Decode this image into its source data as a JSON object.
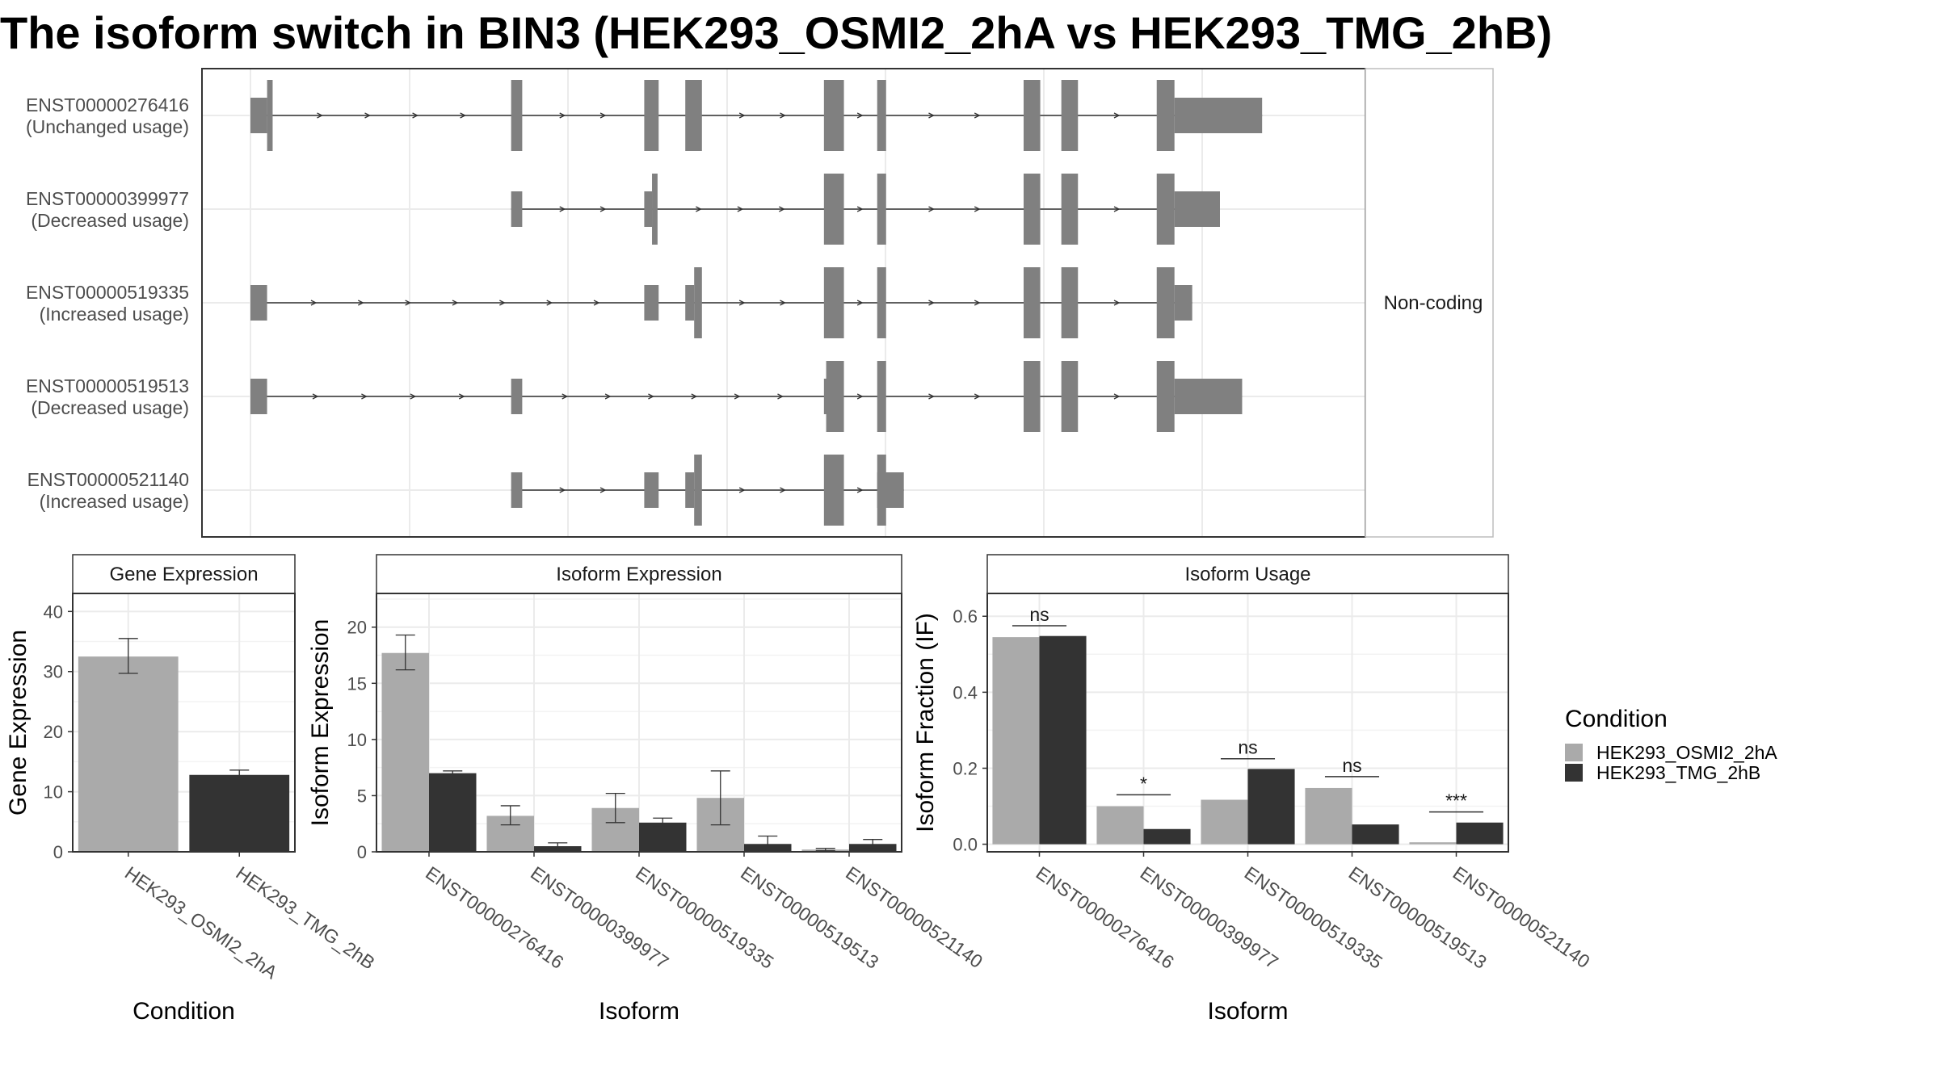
{
  "title": "The isoform switch in BIN3 (HEK293_OSMI2_2hA vs HEK293_TMG_2hB)",
  "colors": {
    "condition_a": "#aaaaaa",
    "condition_b": "#333333",
    "exon": "#808080",
    "panel_border": "#333333",
    "grid": "#ebebeb"
  },
  "structure": {
    "strip_label": "Non-coding",
    "isoforms": [
      {
        "id": "ENST00000276416",
        "usage": "(Unchanged usage)",
        "exons": [
          [
            0.0,
            0.015,
            "t"
          ],
          [
            0.015,
            0.02,
            "c"
          ],
          [
            0.235,
            0.245,
            "c"
          ],
          [
            0.355,
            0.368,
            "c"
          ],
          [
            0.392,
            0.407,
            "c"
          ],
          [
            0.517,
            0.535,
            "c"
          ],
          [
            0.565,
            0.573,
            "c"
          ],
          [
            0.697,
            0.712,
            "c"
          ],
          [
            0.731,
            0.746,
            "c"
          ],
          [
            0.817,
            0.833,
            "c"
          ],
          [
            0.833,
            0.912,
            "t"
          ]
        ]
      },
      {
        "id": "ENST00000399977",
        "usage": "(Decreased usage)",
        "exons": [
          [
            0.235,
            0.245,
            "t"
          ],
          [
            0.355,
            0.362,
            "t"
          ],
          [
            0.362,
            0.367,
            "c"
          ],
          [
            0.517,
            0.535,
            "c"
          ],
          [
            0.565,
            0.573,
            "c"
          ],
          [
            0.697,
            0.712,
            "c"
          ],
          [
            0.731,
            0.746,
            "c"
          ],
          [
            0.817,
            0.833,
            "c"
          ],
          [
            0.833,
            0.874,
            "t"
          ]
        ]
      },
      {
        "id": "ENST00000519335",
        "usage": "(Increased usage)",
        "exons": [
          [
            0.0,
            0.015,
            "t"
          ],
          [
            0.355,
            0.368,
            "t"
          ],
          [
            0.392,
            0.4,
            "t"
          ],
          [
            0.4,
            0.407,
            "c"
          ],
          [
            0.517,
            0.535,
            "c"
          ],
          [
            0.565,
            0.573,
            "c"
          ],
          [
            0.697,
            0.712,
            "c"
          ],
          [
            0.731,
            0.746,
            "c"
          ],
          [
            0.817,
            0.833,
            "c"
          ],
          [
            0.833,
            0.849,
            "t"
          ]
        ]
      },
      {
        "id": "ENST00000519513",
        "usage": "(Decreased usage)",
        "exons": [
          [
            0.0,
            0.015,
            "t"
          ],
          [
            0.235,
            0.245,
            "t"
          ],
          [
            0.517,
            0.519,
            "t"
          ],
          [
            0.519,
            0.535,
            "c"
          ],
          [
            0.565,
            0.573,
            "c"
          ],
          [
            0.697,
            0.712,
            "c"
          ],
          [
            0.731,
            0.746,
            "c"
          ],
          [
            0.817,
            0.833,
            "c"
          ],
          [
            0.833,
            0.894,
            "t"
          ]
        ]
      },
      {
        "id": "ENST00000521140",
        "usage": "(Increased usage)",
        "exons": [
          [
            0.235,
            0.245,
            "t"
          ],
          [
            0.355,
            0.368,
            "t"
          ],
          [
            0.392,
            0.4,
            "t"
          ],
          [
            0.4,
            0.407,
            "c"
          ],
          [
            0.517,
            0.535,
            "c"
          ],
          [
            0.565,
            0.573,
            "c"
          ],
          [
            0.565,
            0.589,
            "t"
          ]
        ]
      }
    ]
  },
  "chart_data": [
    {
      "type": "bar",
      "panel": "Gene Expression",
      "xlabel": "Condition",
      "ylabel": "Gene Expression",
      "ylim": [
        0,
        43
      ],
      "yticks": [
        0,
        10,
        20,
        30,
        40
      ],
      "categories": [
        "HEK293_OSMI2_2hA",
        "HEK293_TMG_2hB"
      ],
      "values": [
        32.5,
        12.8
      ],
      "error": [
        [
          29.7,
          35.5
        ],
        [
          12.1,
          13.6
        ]
      ]
    },
    {
      "type": "bar",
      "panel": "Isoform Expression",
      "xlabel": "Isoform",
      "ylabel": "Isoform Expression",
      "ylim": [
        0,
        23
      ],
      "yticks": [
        0,
        5,
        10,
        15,
        20
      ],
      "categories": [
        "ENST00000276416",
        "ENST00000399977",
        "ENST00000519335",
        "ENST00000519513",
        "ENST00000521140"
      ],
      "series": [
        {
          "name": "HEK293_OSMI2_2hA",
          "values": [
            17.7,
            3.2,
            3.9,
            4.8,
            0.2
          ],
          "error": [
            [
              16.2,
              19.3
            ],
            [
              2.4,
              4.1
            ],
            [
              2.6,
              5.2
            ],
            [
              2.4,
              7.2
            ],
            [
              0.1,
              0.3
            ]
          ]
        },
        {
          "name": "HEK293_TMG_2hB",
          "values": [
            7.0,
            0.5,
            2.6,
            0.7,
            0.7
          ],
          "error": [
            [
              6.8,
              7.2
            ],
            [
              0.3,
              0.8
            ],
            [
              2.2,
              3.0
            ],
            [
              0.1,
              1.4
            ],
            [
              0.3,
              1.1
            ]
          ]
        }
      ]
    },
    {
      "type": "bar",
      "panel": "Isoform Usage",
      "xlabel": "Isoform",
      "ylabel": "Isoform Fraction (IF)",
      "ylim": [
        -0.02,
        0.66
      ],
      "yticks": [
        0.0,
        0.2,
        0.4,
        0.6
      ],
      "categories": [
        "ENST00000276416",
        "ENST00000399977",
        "ENST00000519335",
        "ENST00000519513",
        "ENST00000521140"
      ],
      "series": [
        {
          "name": "HEK293_OSMI2_2hA",
          "values": [
            0.545,
            0.1,
            0.117,
            0.148,
            0.005
          ]
        },
        {
          "name": "HEK293_TMG_2hB",
          "values": [
            0.548,
            0.04,
            0.198,
            0.052,
            0.057
          ]
        }
      ],
      "significance": [
        {
          "label": "ns",
          "y": 0.575
        },
        {
          "label": "*",
          "y": 0.13
        },
        {
          "label": "ns",
          "y": 0.225
        },
        {
          "label": "ns",
          "y": 0.178
        },
        {
          "label": "***",
          "y": 0.085
        }
      ]
    }
  ],
  "legend": {
    "title": "Condition",
    "items": [
      "HEK293_OSMI2_2hA",
      "HEK293_TMG_2hB"
    ]
  }
}
